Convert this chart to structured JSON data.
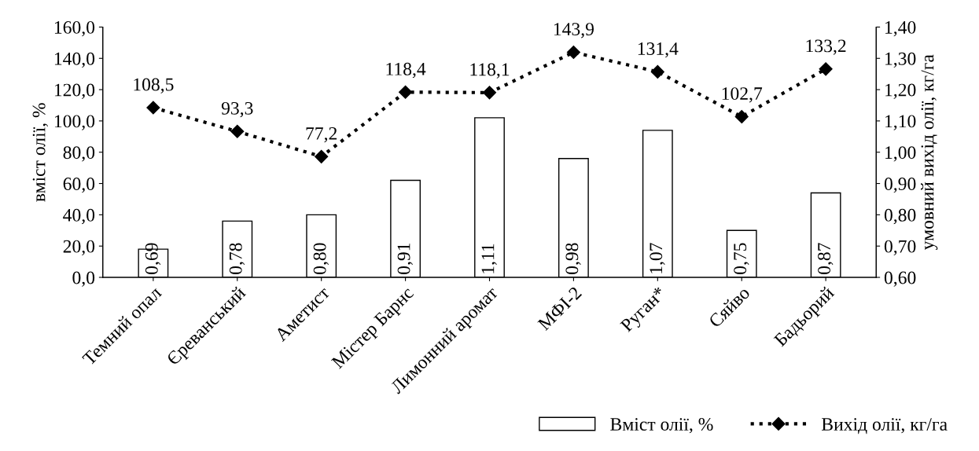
{
  "chart_data": {
    "type": "bar",
    "categories": [
      "Темний опал",
      "Єреванський",
      "Аметист",
      "Містер Барнс",
      "Лимонний аромат",
      "МФІ-2",
      "Руган*",
      "Сяйво",
      "Бадьорий"
    ],
    "series": [
      {
        "name": "Вміст олії, %",
        "axis": "y2",
        "color": "#ffffff",
        "values": [
          0.69,
          0.78,
          0.8,
          0.91,
          1.11,
          0.98,
          1.07,
          0.75,
          0.87
        ],
        "value_labels": [
          "0,69",
          "0,78",
          "0,80",
          "0,91",
          "1,11",
          "0,98",
          "1,07",
          "0,75",
          "0,87"
        ]
      },
      {
        "name": "Вихід олії, кг/га",
        "type": "line",
        "color": "#000000",
        "values": [
          108.5,
          93.3,
          77.2,
          118.4,
          118.1,
          143.9,
          131.4,
          102.7,
          133.2
        ],
        "value_labels": [
          "108,5",
          "93,3",
          "77,2",
          "118,4",
          "118,1",
          "143,9",
          "131,4",
          "102,7",
          "133,2"
        ],
        "marker": "diamond",
        "line_style": "dotted"
      }
    ],
    "ylabel": "вміст олії, %",
    "y2label": "умовний вихід олії, кг/га",
    "ylim": [
      0,
      160
    ],
    "yticks": [
      {
        "value": 0,
        "label": "0,0"
      },
      {
        "value": 20,
        "label": "20,0"
      },
      {
        "value": 40,
        "label": "40,0"
      },
      {
        "value": 60,
        "label": "60,0"
      },
      {
        "value": 80,
        "label": "80,0"
      },
      {
        "value": 100,
        "label": "100,0"
      },
      {
        "value": 120,
        "label": "120,0"
      },
      {
        "value": 140,
        "label": "140,0"
      },
      {
        "value": 160,
        "label": "160,0"
      }
    ],
    "y2lim": [
      0.6,
      1.4
    ],
    "y2ticks": [
      {
        "value": 0.6,
        "label": "0,60"
      },
      {
        "value": 0.7,
        "label": "0,70"
      },
      {
        "value": 0.8,
        "label": "0,80"
      },
      {
        "value": 0.9,
        "label": "0,90"
      },
      {
        "value": 1.0,
        "label": "1,00"
      },
      {
        "value": 1.1,
        "label": "1,10"
      },
      {
        "value": 1.2,
        "label": "1,20"
      },
      {
        "value": 1.3,
        "label": "1,30"
      },
      {
        "value": 1.4,
        "label": "1,40"
      }
    ],
    "grid": false,
    "legend": "bottom right"
  }
}
